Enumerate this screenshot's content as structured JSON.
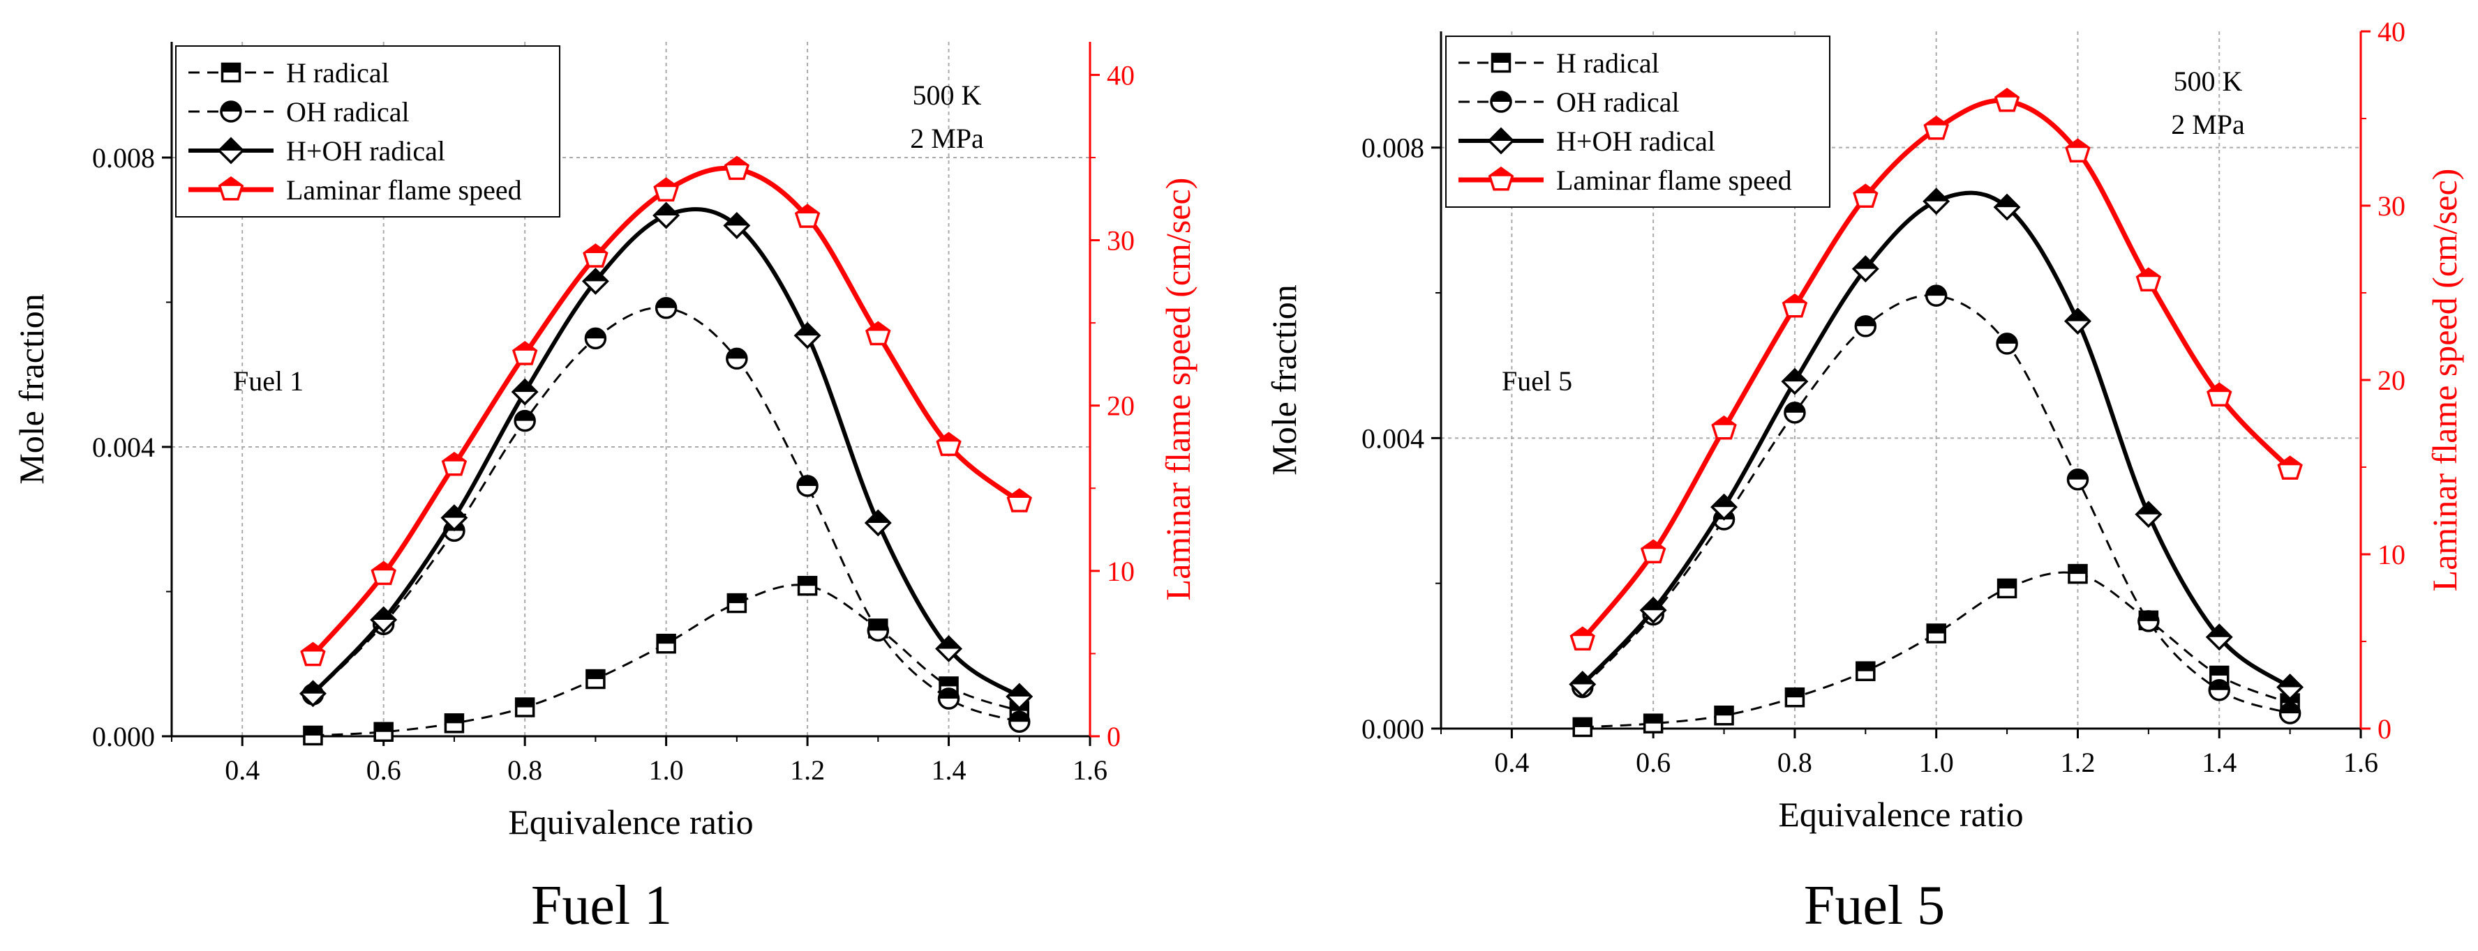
{
  "chart_data": [
    {
      "type": "line",
      "caption": "Fuel 1",
      "annotations": {
        "label": "Fuel 1",
        "temperature": "500 K",
        "pressure": "2 MPa"
      },
      "xlabel": "Equivalence ratio",
      "ylabel": "Mole fraction",
      "y2label": "Laminar flame speed (cm/sec)",
      "xlim": [
        0.3,
        1.6
      ],
      "ylim": [
        0.0,
        0.0096
      ],
      "y2lim": [
        0,
        42
      ],
      "xticks": [
        "0.4",
        "0.6",
        "0.8",
        "1.0",
        "1.2",
        "1.4",
        "1.6"
      ],
      "yticks": [
        "0.000",
        "0.004",
        "0.008"
      ],
      "y2ticks": [
        "0",
        "10",
        "20",
        "30",
        "40"
      ],
      "grid": true,
      "legend_position": "top-left",
      "x": [
        0.5,
        0.6,
        0.7,
        0.8,
        0.9,
        1.0,
        1.1,
        1.2,
        1.3,
        1.4,
        1.5
      ],
      "series": [
        {
          "name": "H radical",
          "axis": "left",
          "values": [
            1e-05,
            6e-05,
            0.00018,
            0.0004,
            0.00079,
            0.00128,
            0.00184,
            0.00208,
            0.00149,
            0.00069,
            0.00035
          ]
        },
        {
          "name": "OH radical",
          "axis": "left",
          "values": [
            0.00058,
            0.00155,
            0.00284,
            0.00436,
            0.0055,
            0.00592,
            0.00522,
            0.00346,
            0.00146,
            0.00052,
            0.0002
          ]
        },
        {
          "name": "H+OH radical",
          "axis": "left",
          "values": [
            0.00059,
            0.00161,
            0.00302,
            0.00476,
            0.00629,
            0.0072,
            0.00706,
            0.00554,
            0.00295,
            0.00121,
            0.00055
          ]
        },
        {
          "name": "Laminar flame speed",
          "axis": "right",
          "values": [
            4.9,
            9.8,
            16.4,
            23.1,
            29.0,
            33.0,
            34.3,
            31.4,
            24.3,
            17.6,
            14.2
          ]
        }
      ]
    },
    {
      "type": "line",
      "caption": "Fuel 5",
      "annotations": {
        "label": "Fuel 5",
        "temperature": "500 K",
        "pressure": "2 MPa"
      },
      "xlabel": "Equivalence ratio",
      "ylabel": "Mole fraction",
      "y2label": "Laminar flame speed (cm/sec)",
      "xlim": [
        0.3,
        1.6
      ],
      "ylim": [
        0.0,
        0.0096
      ],
      "y2lim": [
        0,
        40
      ],
      "xticks": [
        "0.4",
        "0.6",
        "0.8",
        "1.0",
        "1.2",
        "1.4",
        "1.6"
      ],
      "yticks": [
        "0.000",
        "0.004",
        "0.008"
      ],
      "y2ticks": [
        "0",
        "10",
        "20",
        "30",
        "40"
      ],
      "grid": true,
      "legend_position": "top-left",
      "x": [
        0.5,
        0.6,
        0.7,
        0.8,
        0.9,
        1.0,
        1.1,
        1.2,
        1.3,
        1.4,
        1.5
      ],
      "series": [
        {
          "name": "H radical",
          "axis": "left",
          "values": [
            2e-05,
            7e-05,
            0.00018,
            0.00043,
            0.00079,
            0.00131,
            0.00193,
            0.00213,
            0.00149,
            0.00073,
            0.00035
          ]
        },
        {
          "name": "OH radical",
          "axis": "left",
          "values": [
            0.00057,
            0.00157,
            0.00288,
            0.00435,
            0.00554,
            0.00596,
            0.0053,
            0.00343,
            0.00148,
            0.00053,
            0.00021
          ]
        },
        {
          "name": "H+OH radical",
          "axis": "left",
          "values": [
            0.00061,
            0.00163,
            0.00305,
            0.00478,
            0.00633,
            0.00726,
            0.00718,
            0.00561,
            0.00295,
            0.00126,
            0.00057
          ]
        },
        {
          "name": "Laminar flame speed",
          "axis": "right",
          "values": [
            5.1,
            10.1,
            17.2,
            24.2,
            30.5,
            34.4,
            36.0,
            33.1,
            25.7,
            19.1,
            14.9
          ]
        }
      ]
    }
  ]
}
